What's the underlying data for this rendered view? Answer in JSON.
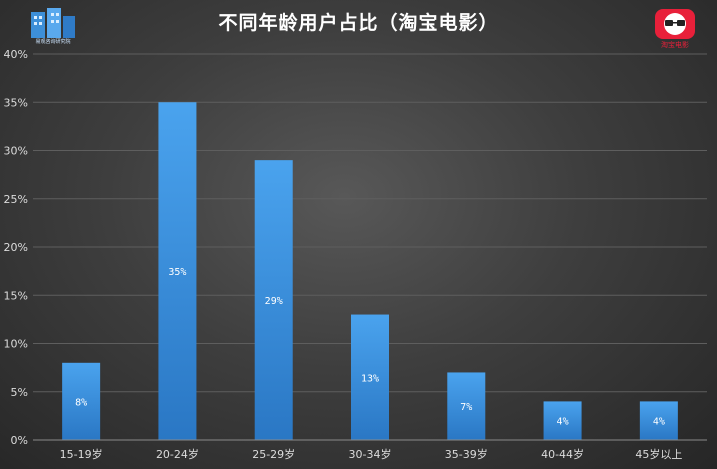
{
  "header": {
    "title": "不同年龄用户占比（淘宝电影）",
    "left_logo_text": "易观咨询研究院",
    "right_logo_text": "淘宝电影"
  },
  "chart_data": {
    "type": "bar",
    "title": "不同年龄用户占比（淘宝电影）",
    "xlabel": "",
    "ylabel": "",
    "categories": [
      "15-19岁",
      "20-24岁",
      "25-29岁",
      "30-34岁",
      "35-39岁",
      "40-44岁",
      "45岁以上"
    ],
    "values": [
      8,
      35,
      29,
      13,
      7,
      4,
      4
    ],
    "data_labels": [
      "8%",
      "35%",
      "29%",
      "13%",
      "7%",
      "4%",
      "4%"
    ],
    "ylim": [
      0,
      40
    ],
    "yticks": [
      0,
      5,
      10,
      15,
      20,
      25,
      30,
      35,
      40
    ],
    "ytick_labels": [
      "0%",
      "5%",
      "10%",
      "15%",
      "20%",
      "25%",
      "30%",
      "35%",
      "40%"
    ],
    "grid": true,
    "legend": "none",
    "colors": {
      "bar_top": "#4aa3ee",
      "bar_bottom": "#2a77c4",
      "grid": "#5e5e5e",
      "axis_text": "#dcdcdc",
      "label_text": "#ffffff"
    }
  }
}
